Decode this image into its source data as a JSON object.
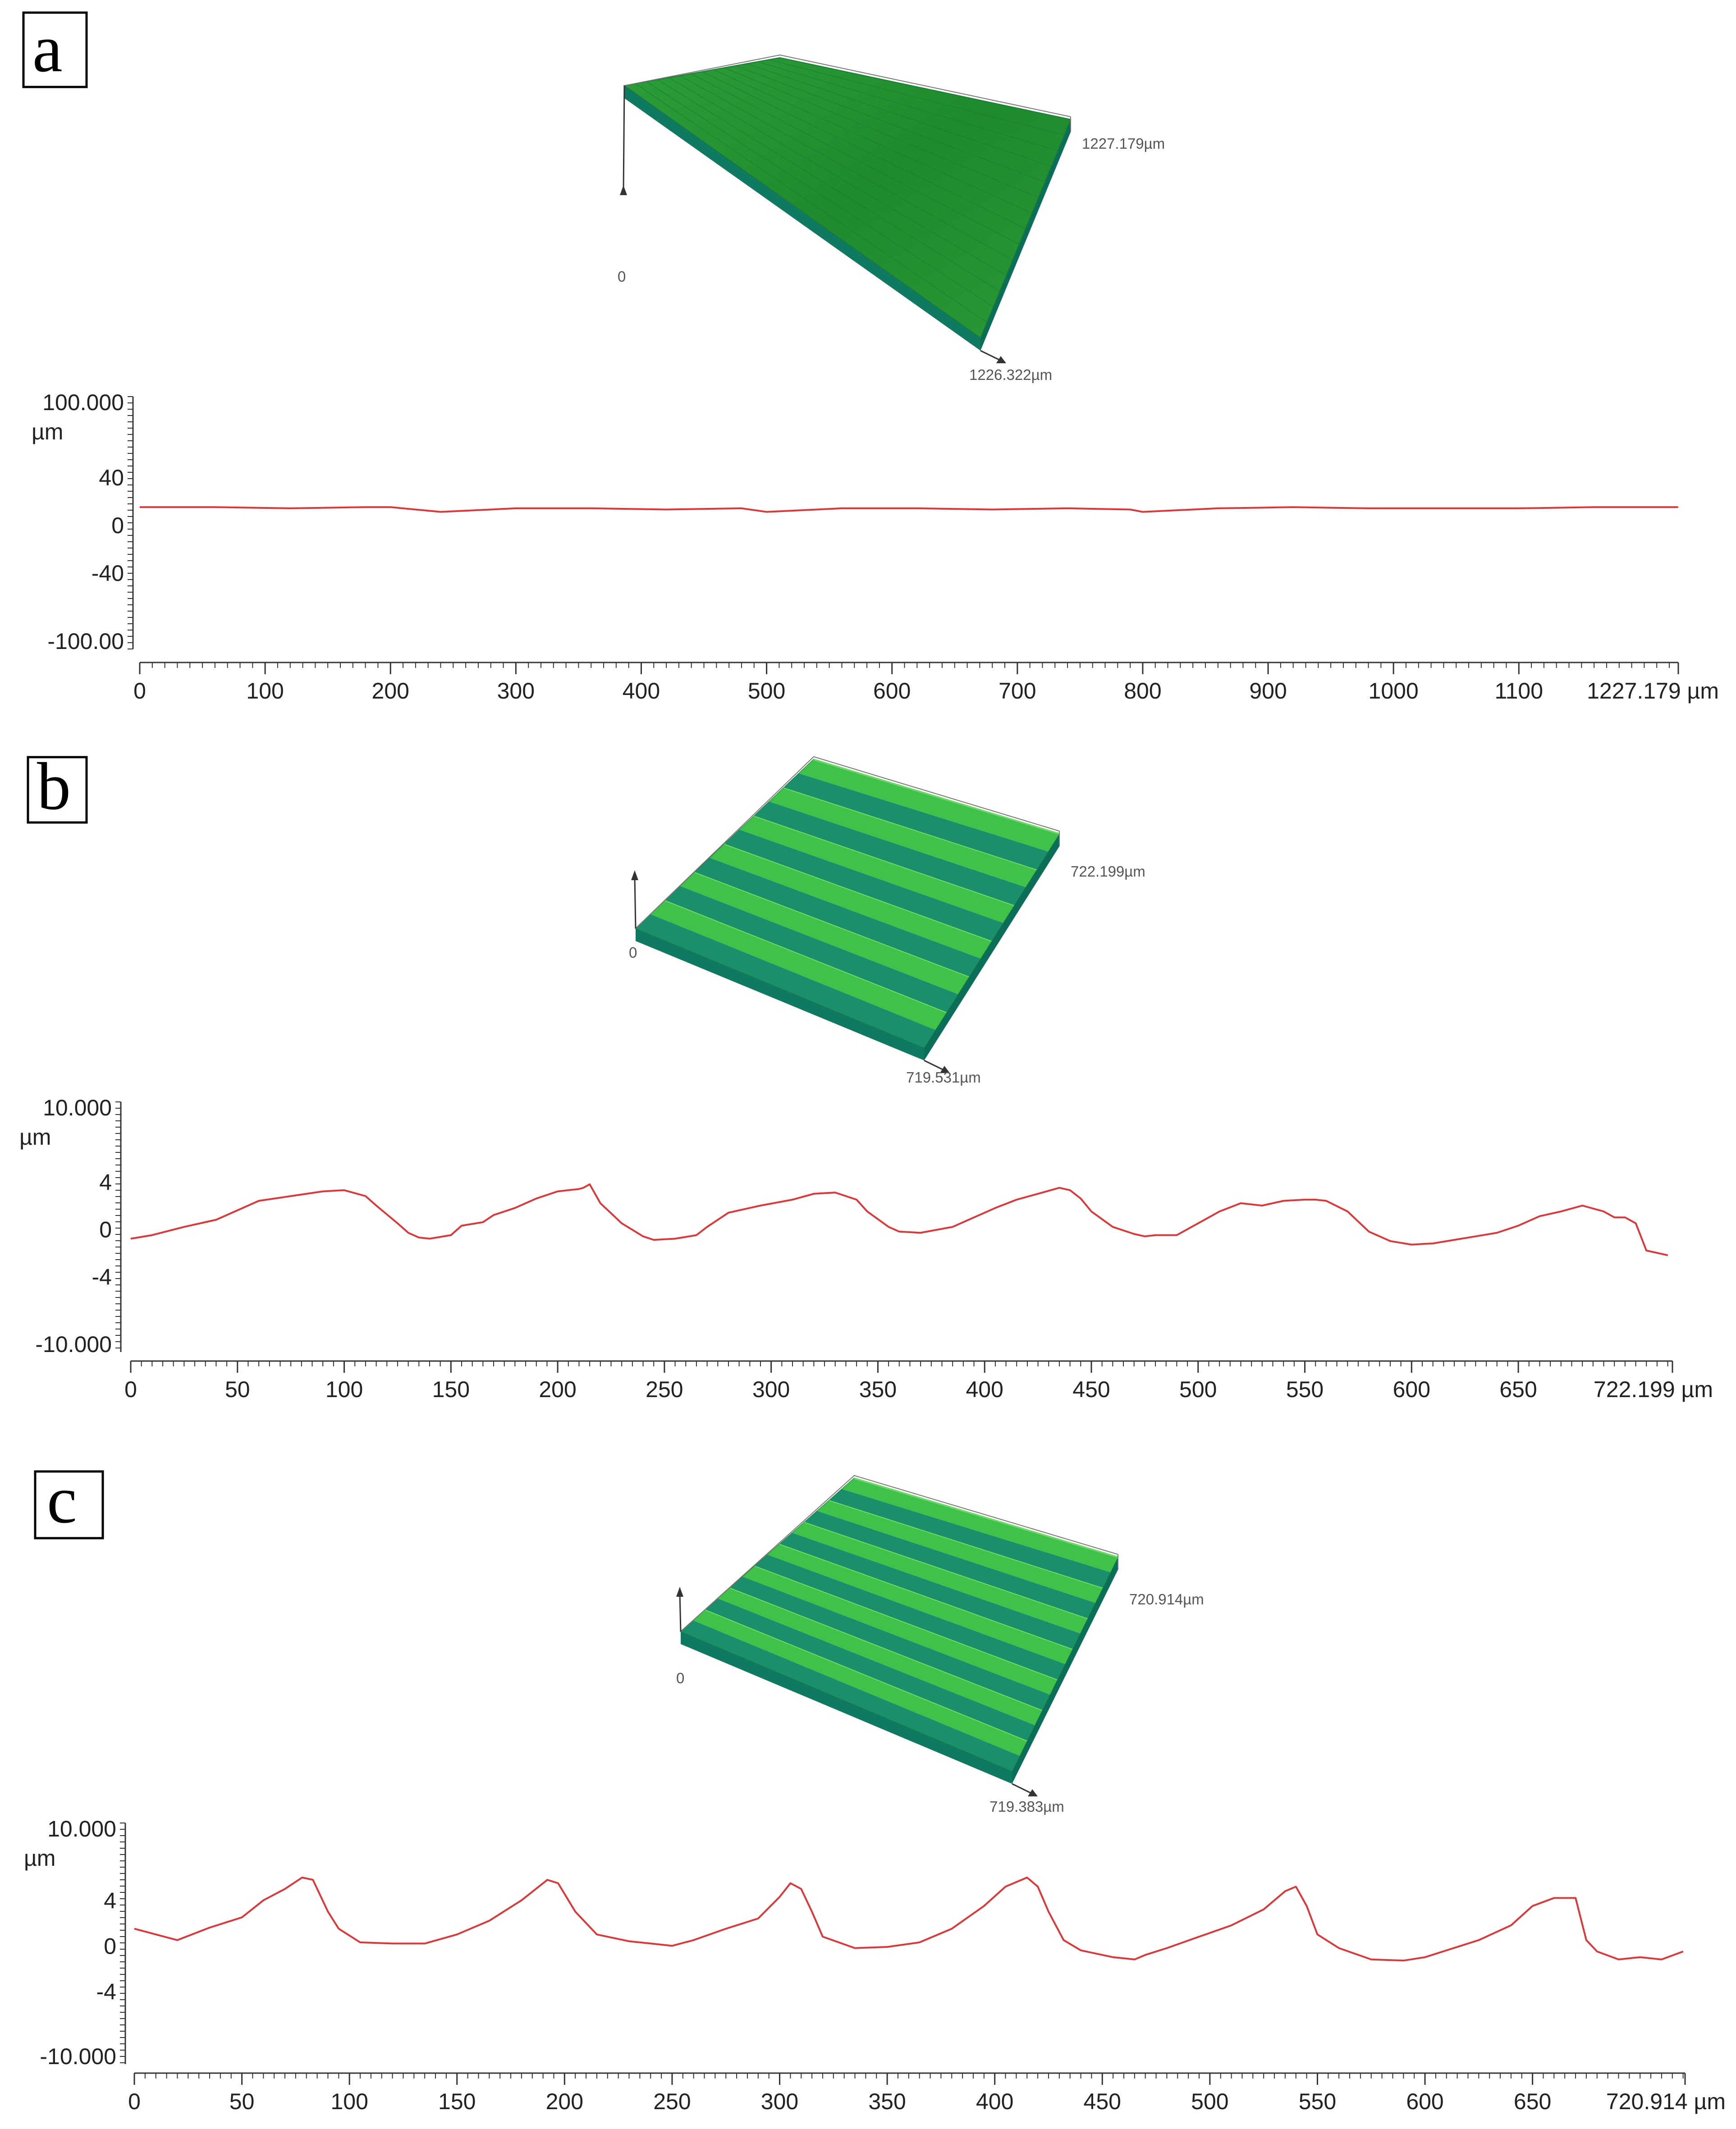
{
  "panels": [
    {
      "letter": "a",
      "surface": {
        "right_label": "1227.179µm",
        "bottom_label": "1226.322µm",
        "origin_label": "0",
        "grooves": 0
      },
      "profile_chart": {
        "type": "line",
        "x_tick_labels": [
          "0",
          "100",
          "200",
          "300",
          "400",
          "500",
          "600",
          "700",
          "800",
          "900",
          "1000",
          "1100",
          "1227.179 µm"
        ],
        "x_ticks": [
          0,
          100,
          200,
          300,
          400,
          500,
          600,
          700,
          800,
          900,
          1000,
          1100,
          1227.179
        ],
        "y_tick_labels": [
          "100.000",
          "µm",
          "40",
          "0",
          "-40",
          "-100.00"
        ],
        "ylim": [
          -100,
          100
        ],
        "xlim": [
          0,
          1227.179
        ],
        "series": [
          {
            "color": "#d9393b",
            "x": [
              0,
              60,
              120,
              180,
              200,
              240,
              300,
              360,
              420,
              480,
              500,
              560,
              620,
              680,
              740,
              790,
              800,
              860,
              920,
              980,
              1040,
              1100,
              1160,
              1227
            ],
            "y": [
              15,
              15,
              14,
              15,
              15,
              11,
              14,
              14,
              13,
              14,
              11,
              14,
              14,
              13,
              14,
              13,
              11,
              14,
              15,
              14,
              14,
              14,
              15,
              15
            ]
          }
        ]
      }
    },
    {
      "letter": "b",
      "surface": {
        "right_label": "722.199µm",
        "bottom_label": "719.531µm",
        "origin_label": "0",
        "grooves": 6
      },
      "profile_chart": {
        "type": "line",
        "x_tick_labels": [
          "0",
          "50",
          "100",
          "150",
          "200",
          "250",
          "300",
          "350",
          "400",
          "450",
          "500",
          "550",
          "600",
          "650",
          "722.199 µm"
        ],
        "x_ticks": [
          0,
          50,
          100,
          150,
          200,
          250,
          300,
          350,
          400,
          450,
          500,
          550,
          600,
          650,
          722.199
        ],
        "y_tick_labels": [
          "10.000",
          "µm",
          "4",
          "0",
          "-4",
          "-10.000"
        ],
        "ylim": [
          -10,
          10
        ],
        "xlim": [
          0,
          722.199
        ],
        "series": [
          {
            "color": "#d9393b",
            "x": [
              0,
              10,
              25,
              40,
              50,
              60,
              75,
              90,
              100,
              110,
              115,
              125,
              130,
              135,
              140,
              150,
              155,
              165,
              170,
              180,
              190,
              200,
              210,
              212,
              215,
              220,
              230,
              240,
              245,
              255,
              265,
              270,
              280,
              295,
              310,
              320,
              330,
              340,
              345,
              355,
              360,
              370,
              385,
              395,
              405,
              415,
              425,
              435,
              440,
              445,
              450,
              460,
              470,
              475,
              480,
              490,
              500,
              510,
              520,
              530,
              540,
              550,
              555,
              560,
              570,
              580,
              590,
              600,
              610,
              620,
              630,
              640,
              650,
              660,
              670,
              680,
              690,
              695,
              700,
              705,
              710,
              715,
              720
            ],
            "y": [
              -0.8,
              -0.5,
              0.2,
              0.8,
              1.6,
              2.4,
              2.8,
              3.2,
              3.3,
              2.8,
              2.0,
              0.5,
              -0.3,
              -0.7,
              -0.8,
              -0.5,
              0.3,
              0.6,
              1.2,
              1.8,
              2.6,
              3.2,
              3.4,
              3.5,
              3.8,
              2.2,
              0.5,
              -0.6,
              -0.9,
              -0.8,
              -0.5,
              0.2,
              1.4,
              2.0,
              2.5,
              3.0,
              3.1,
              2.5,
              1.5,
              0.2,
              -0.2,
              -0.3,
              0.2,
              1.0,
              1.8,
              2.5,
              3.0,
              3.5,
              3.3,
              2.6,
              1.5,
              0.2,
              -0.4,
              -0.6,
              -0.5,
              -0.5,
              0.5,
              1.5,
              2.2,
              2.0,
              2.4,
              2.5,
              2.5,
              2.4,
              1.5,
              -0.2,
              -1.0,
              -1.3,
              -1.2,
              -0.9,
              -0.6,
              -0.3,
              0.3,
              1.1,
              1.5,
              2.0,
              1.5,
              1.0,
              1.0,
              0.5,
              -1.8,
              -2.0,
              -2.2
            ]
          }
        ]
      }
    },
    {
      "letter": "c",
      "surface": {
        "right_label": "720.914µm",
        "bottom_label": "719.383µm",
        "origin_label": "0",
        "grooves": 7
      },
      "profile_chart": {
        "type": "line",
        "x_tick_labels": [
          "0",
          "50",
          "100",
          "150",
          "200",
          "250",
          "300",
          "350",
          "400",
          "450",
          "500",
          "550",
          "600",
          "650",
          "720.914 µm"
        ],
        "x_ticks": [
          0,
          50,
          100,
          150,
          200,
          250,
          300,
          350,
          400,
          450,
          500,
          550,
          600,
          650,
          720.914
        ],
        "y_tick_labels": [
          "10.000",
          "µm",
          "4",
          "0",
          "-4",
          "-10.000"
        ],
        "ylim": [
          -10,
          10
        ],
        "xlim": [
          0,
          720.914
        ],
        "series": [
          {
            "color": "#d9393b",
            "x": [
              0,
              10,
              20,
              35,
              50,
              60,
              70,
              78,
              83,
              90,
              95,
              105,
              120,
              135,
              150,
              165,
              180,
              192,
              197,
              205,
              215,
              230,
              240,
              250,
              260,
              275,
              290,
              300,
              305,
              310,
              315,
              320,
              335,
              350,
              365,
              380,
              395,
              405,
              415,
              420,
              425,
              432,
              440,
              455,
              465,
              470,
              480,
              495,
              510,
              525,
              535,
              540,
              545,
              550,
              560,
              575,
              590,
              600,
              610,
              625,
              640,
              650,
              660,
              665,
              670,
              675,
              680,
              690,
              700,
              710,
              720
            ],
            "y": [
              1.5,
              1.0,
              0.5,
              1.6,
              2.5,
              4.0,
              5.0,
              6.0,
              5.8,
              3.0,
              1.5,
              0.3,
              0.2,
              0.2,
              1.0,
              2.2,
              4.0,
              5.8,
              5.5,
              3.0,
              1.0,
              0.4,
              0.2,
              0.0,
              0.5,
              1.5,
              2.4,
              4.3,
              5.5,
              5.0,
              3.0,
              0.8,
              -0.2,
              -0.1,
              0.3,
              1.5,
              3.5,
              5.2,
              6.0,
              5.2,
              3.0,
              0.5,
              -0.4,
              -1.0,
              -1.2,
              -0.8,
              -0.2,
              0.8,
              1.8,
              3.2,
              4.8,
              5.2,
              3.5,
              1.0,
              -0.2,
              -1.2,
              -1.3,
              -1.0,
              -0.4,
              0.5,
              1.8,
              3.5,
              4.2,
              4.2,
              4.2,
              0.5,
              -0.5,
              -1.2,
              -1.0,
              -1.2,
              -0.5
            ]
          }
        ]
      }
    }
  ]
}
